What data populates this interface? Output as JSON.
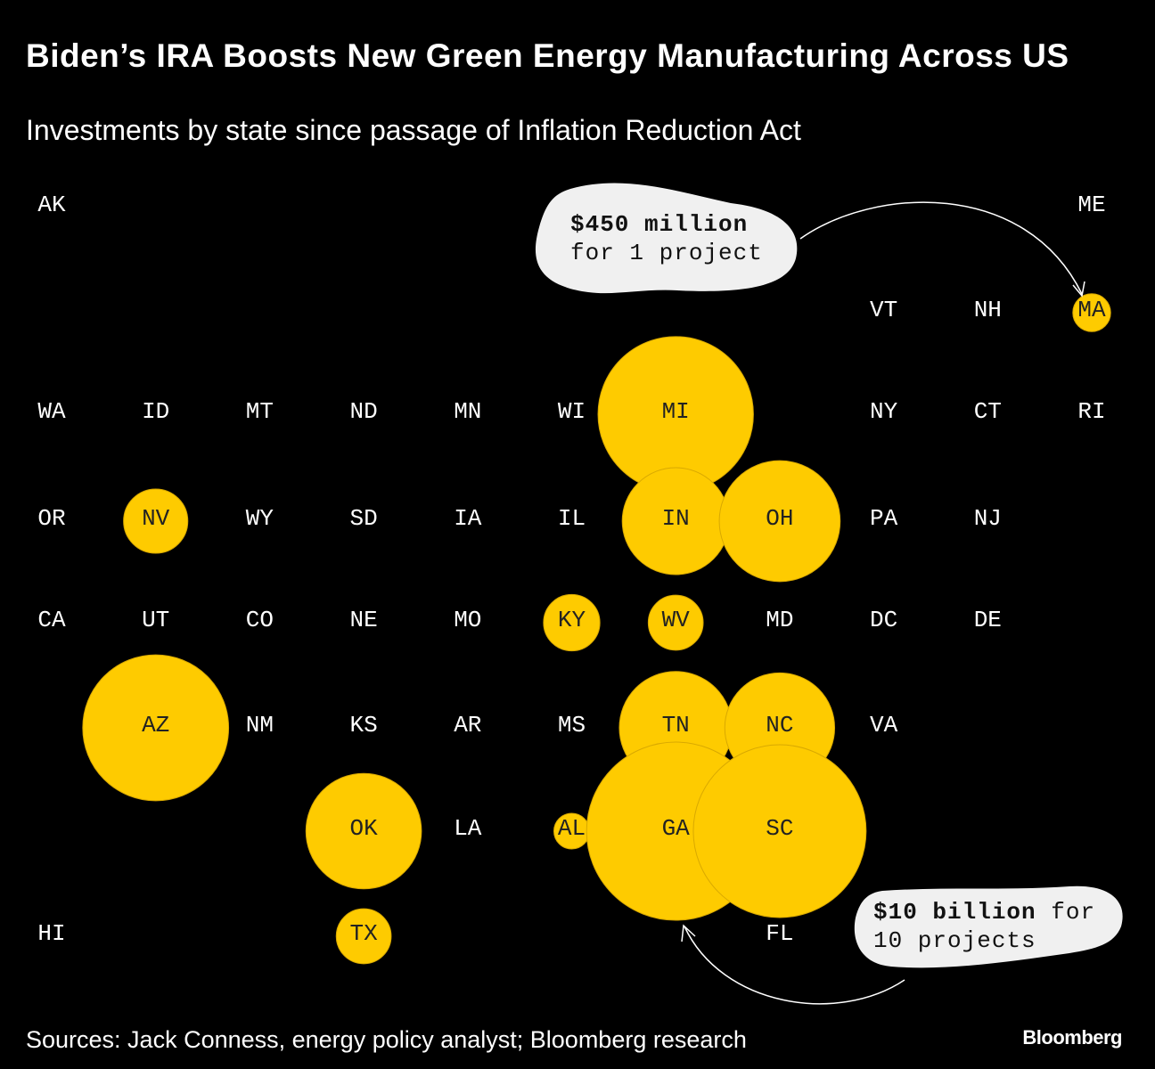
{
  "chart_data": {
    "type": "tile-bubble",
    "title": "Biden’s IRA Boosts New Green Energy Manufacturing Across US",
    "subtitle": "Investments by state since passage of Inflation Reduction Act",
    "categories": [
      "AK",
      "ME",
      "VT",
      "NH",
      "MA",
      "WA",
      "ID",
      "MT",
      "ND",
      "MN",
      "WI",
      "MI",
      "NY",
      "CT",
      "RI",
      "OR",
      "NV",
      "WY",
      "SD",
      "IA",
      "IL",
      "IN",
      "OH",
      "PA",
      "NJ",
      "CA",
      "UT",
      "CO",
      "NE",
      "MO",
      "KY",
      "WV",
      "MD",
      "DC",
      "DE",
      "AZ",
      "NM",
      "KS",
      "AR",
      "MS",
      "TN",
      "NC",
      "VA",
      "OK",
      "LA",
      "AL",
      "GA",
      "SC",
      "HI",
      "TX",
      "FL"
    ],
    "values": [
      null,
      null,
      null,
      null,
      450,
      null,
      null,
      null,
      null,
      null,
      null,
      7600,
      null,
      null,
      null,
      null,
      1300,
      null,
      null,
      null,
      null,
      3600,
      4600,
      null,
      null,
      null,
      null,
      null,
      null,
      null,
      1000,
      950,
      null,
      null,
      null,
      6700,
      null,
      null,
      null,
      null,
      4000,
      3800,
      null,
      4200,
      null,
      400,
      10000,
      9400,
      null,
      950,
      null
    ],
    "color": "#fecb00",
    "annotations": [
      {
        "bold": "$450 million",
        "text": "for 1 project"
      },
      {
        "bold": "$10 billion",
        "text": "for 10 projects"
      }
    ],
    "source": "Sources: Jack Conness, energy policy analyst; Bloomberg research",
    "logo": "Bloomberg"
  }
}
